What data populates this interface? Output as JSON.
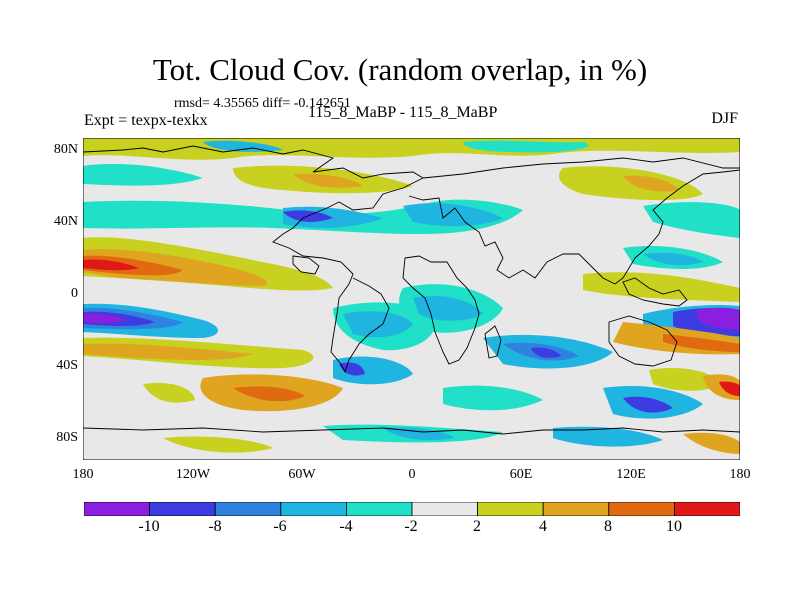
{
  "title": "Tot. Cloud Cov. (random overlap, in %)",
  "stats": "rmsd= 4.35565 diff= -0.142651",
  "expt_label": "Expt = texpx-texkx",
  "experiment": "115_8_MaBP - 115_8_MaBP",
  "season": "DJF",
  "lat_ticks": [
    "80N",
    "40N",
    "0",
    "40S",
    "80S"
  ],
  "lon_ticks": [
    "180",
    "120W",
    "60W",
    "0",
    "60E",
    "120E",
    "180"
  ],
  "colorbar": {
    "colors": [
      "#8a1fe0",
      "#3c3ce0",
      "#2f82e0",
      "#20b4e0",
      "#20e0c8",
      "#e8e8e8",
      "#c8d020",
      "#e0a520",
      "#e06a10",
      "#e01818"
    ],
    "labels": [
      "-10",
      "-8",
      "-6",
      "-4",
      "-2",
      "2",
      "4",
      "8",
      "10"
    ]
  }
}
